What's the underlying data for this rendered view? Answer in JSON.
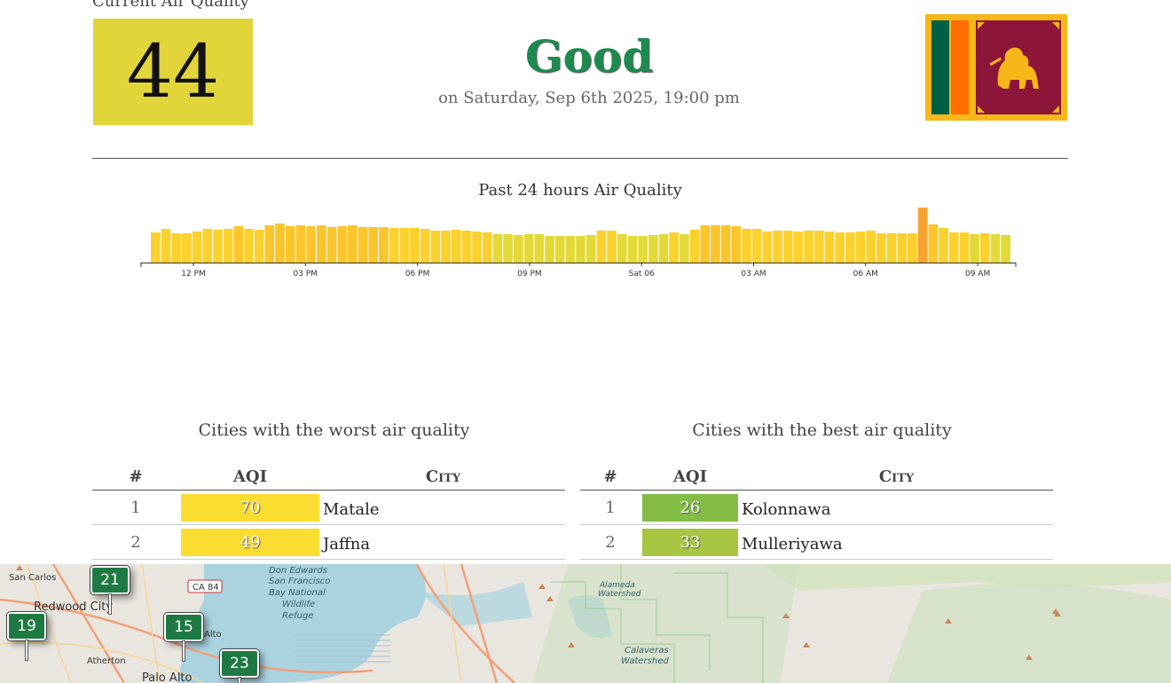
{
  "header": {
    "current_label": "Current Air Quality",
    "aqi_value": "44",
    "status": "Good",
    "timestamp": "on Saturday, Sep 6th 2025, 19:00 pm"
  },
  "colors": {
    "aqi_box": "#e2d53a",
    "good": "#1f8a4f",
    "moderate_bar": "#fdd835",
    "good_bar": "#8bc34a"
  },
  "chart_data": {
    "type": "bar",
    "title": "Past 24 hours Air Quality",
    "x_tick_labels": [
      "12 PM",
      "03 PM",
      "06 PM",
      "09 PM",
      "Sat 06",
      "03 AM",
      "06 AM",
      "09 AM"
    ],
    "values": [
      34,
      38,
      33,
      33,
      35,
      38,
      37,
      38,
      41,
      38,
      37,
      42,
      44,
      41,
      42,
      41,
      42,
      40,
      41,
      42,
      40,
      40,
      40,
      39,
      39,
      39,
      38,
      36,
      36,
      37,
      36,
      35,
      34,
      32,
      32,
      31,
      32,
      32,
      30,
      30,
      30,
      30,
      31,
      36,
      36,
      32,
      30,
      30,
      31,
      32,
      34,
      32,
      37,
      42,
      42,
      42,
      41,
      38,
      38,
      35,
      36,
      36,
      35,
      36,
      36,
      35,
      34,
      34,
      35,
      36,
      33,
      33,
      33,
      33,
      62,
      43,
      39,
      34,
      34,
      32,
      33,
      32,
      31
    ],
    "ylim": [
      0,
      65
    ]
  },
  "worst": {
    "title": "Cities with the worst air quality",
    "headers": {
      "rank": "#",
      "aqi": "AQI",
      "city": "City"
    },
    "rows": [
      {
        "rank": "1",
        "aqi": "70",
        "city": "Matale",
        "color": "#fbdd32"
      },
      {
        "rank": "2",
        "aqi": "49",
        "city": "Jaffna",
        "color": "#fbdd32"
      }
    ]
  },
  "best": {
    "title": "Cities with the best air quality",
    "headers": {
      "rank": "#",
      "aqi": "AQI",
      "city": "City"
    },
    "rows": [
      {
        "rank": "1",
        "aqi": "26",
        "city": "Kolonnawa",
        "color": "#84bd45"
      },
      {
        "rank": "2",
        "aqi": "33",
        "city": "Mulleriyawa",
        "color": "#a8c641"
      }
    ]
  },
  "map": {
    "places": [
      "San Carlos",
      "Redwood City",
      "Atherton",
      "Palo Alto",
      "Alto",
      "Don Edwards",
      "San Francisco",
      "Bay National",
      "Wildlife",
      "Refuge",
      "Alameda",
      "Watershed",
      "Calaveras",
      "Watershed"
    ],
    "road_label": "CA 84",
    "markers": [
      "21",
      "19",
      "15",
      "23"
    ]
  }
}
